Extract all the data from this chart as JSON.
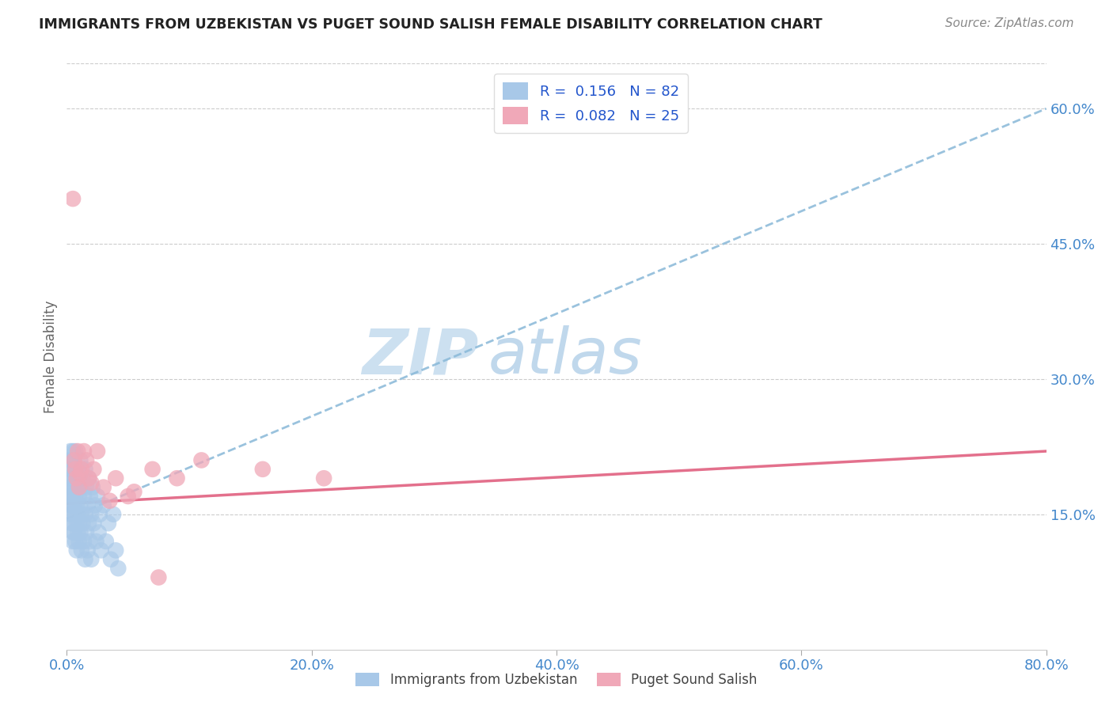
{
  "title": "IMMIGRANTS FROM UZBEKISTAN VS PUGET SOUND SALISH FEMALE DISABILITY CORRELATION CHART",
  "source": "Source: ZipAtlas.com",
  "ylabel": "Female Disability",
  "legend_label1": "Immigrants from Uzbekistan",
  "legend_label2": "Puget Sound Salish",
  "r1": 0.156,
  "n1": 82,
  "r2": 0.082,
  "n2": 25,
  "xlim": [
    0.0,
    0.8
  ],
  "ylim": [
    0.0,
    0.65
  ],
  "xtick_labels": [
    "0.0%",
    "20.0%",
    "40.0%",
    "60.0%",
    "80.0%"
  ],
  "xtick_values": [
    0.0,
    0.2,
    0.4,
    0.6,
    0.8
  ],
  "ytick_right_labels": [
    "15.0%",
    "30.0%",
    "45.0%",
    "60.0%"
  ],
  "ytick_right_values": [
    0.15,
    0.3,
    0.45,
    0.6
  ],
  "color_blue": "#a8c8e8",
  "color_pink": "#f0a8b8",
  "color_blue_line": "#88b8d8",
  "color_pink_line": "#e06080",
  "title_color": "#222222",
  "source_color": "#888888",
  "watermark_zip": "ZIP",
  "watermark_atlas": "atlas",
  "watermark_color_zip": "#cce0f0",
  "watermark_color_atlas": "#c0d8ec",
  "blue_trend_x0": 0.0,
  "blue_trend_y0": 0.145,
  "blue_trend_x1": 0.8,
  "blue_trend_y1": 0.6,
  "pink_trend_x0": 0.0,
  "pink_trend_y0": 0.162,
  "pink_trend_x1": 0.8,
  "pink_trend_y1": 0.22,
  "blue_x": [
    0.002,
    0.002,
    0.002,
    0.003,
    0.003,
    0.003,
    0.003,
    0.003,
    0.004,
    0.004,
    0.004,
    0.004,
    0.004,
    0.005,
    0.005,
    0.005,
    0.005,
    0.005,
    0.005,
    0.005,
    0.006,
    0.006,
    0.006,
    0.006,
    0.006,
    0.006,
    0.007,
    0.007,
    0.007,
    0.007,
    0.007,
    0.007,
    0.008,
    0.008,
    0.008,
    0.008,
    0.009,
    0.009,
    0.009,
    0.009,
    0.01,
    0.01,
    0.01,
    0.01,
    0.011,
    0.011,
    0.011,
    0.012,
    0.012,
    0.012,
    0.013,
    0.013,
    0.014,
    0.014,
    0.015,
    0.015,
    0.015,
    0.016,
    0.016,
    0.017,
    0.017,
    0.018,
    0.018,
    0.019,
    0.019,
    0.02,
    0.02,
    0.021,
    0.022,
    0.023,
    0.024,
    0.025,
    0.026,
    0.027,
    0.028,
    0.03,
    0.032,
    0.034,
    0.036,
    0.038,
    0.04,
    0.042
  ],
  "blue_y": [
    0.17,
    0.19,
    0.21,
    0.16,
    0.18,
    0.2,
    0.15,
    0.22,
    0.17,
    0.19,
    0.14,
    0.21,
    0.16,
    0.18,
    0.13,
    0.2,
    0.15,
    0.17,
    0.22,
    0.12,
    0.19,
    0.16,
    0.18,
    0.14,
    0.21,
    0.13,
    0.17,
    0.2,
    0.15,
    0.18,
    0.12,
    0.22,
    0.16,
    0.19,
    0.14,
    0.11,
    0.18,
    0.15,
    0.13,
    0.2,
    0.17,
    0.14,
    0.19,
    0.12,
    0.16,
    0.21,
    0.13,
    0.18,
    0.15,
    0.11,
    0.19,
    0.14,
    0.17,
    0.12,
    0.2,
    0.15,
    0.1,
    0.18,
    0.13,
    0.16,
    0.11,
    0.19,
    0.14,
    0.17,
    0.12,
    0.15,
    0.1,
    0.18,
    0.14,
    0.16,
    0.12,
    0.17,
    0.13,
    0.15,
    0.11,
    0.16,
    0.12,
    0.14,
    0.1,
    0.15,
    0.11,
    0.09
  ],
  "pink_x": [
    0.005,
    0.006,
    0.007,
    0.008,
    0.009,
    0.01,
    0.012,
    0.014,
    0.016,
    0.018,
    0.022,
    0.025,
    0.03,
    0.04,
    0.05,
    0.07,
    0.09,
    0.11,
    0.16,
    0.21,
    0.011,
    0.02,
    0.035,
    0.055,
    0.075
  ],
  "pink_y": [
    0.5,
    0.21,
    0.2,
    0.19,
    0.22,
    0.18,
    0.2,
    0.22,
    0.21,
    0.19,
    0.2,
    0.22,
    0.18,
    0.19,
    0.17,
    0.2,
    0.19,
    0.21,
    0.2,
    0.19,
    0.195,
    0.185,
    0.165,
    0.175,
    0.08
  ]
}
